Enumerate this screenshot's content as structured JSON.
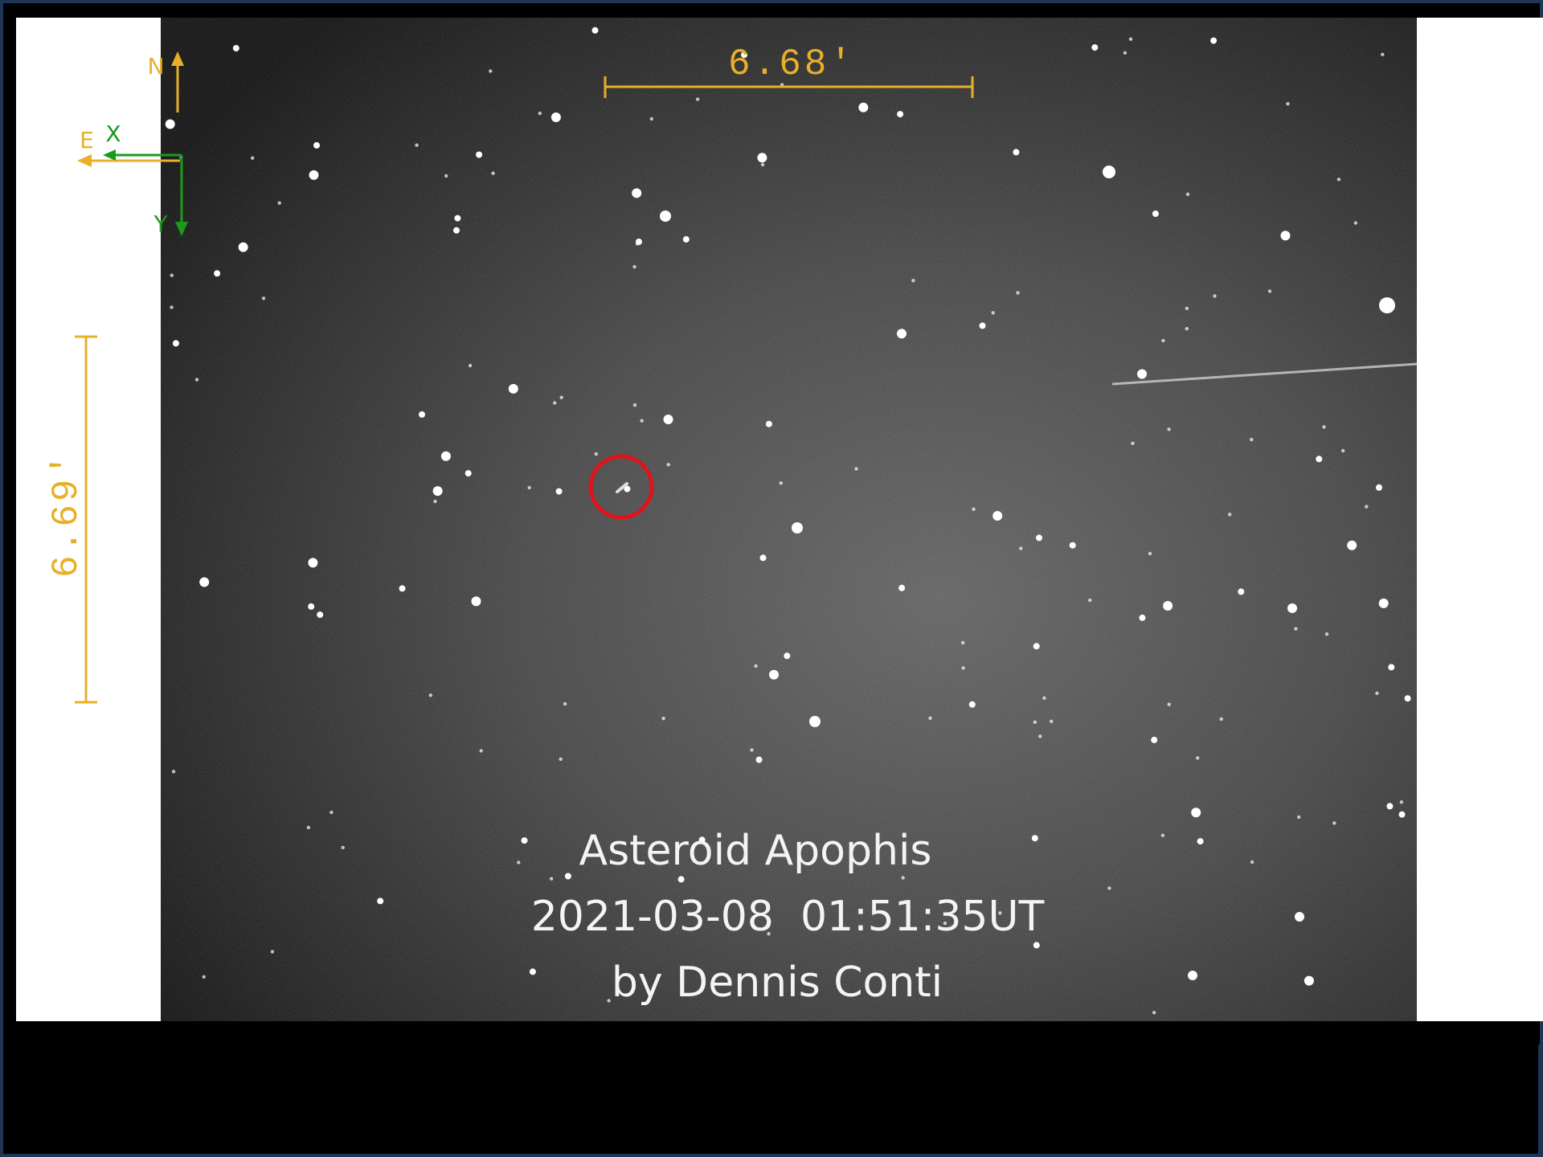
{
  "scale_bar_horizontal": {
    "label": "6.68'"
  },
  "scale_bar_vertical": {
    "label": "6.69'"
  },
  "compass": {
    "north": "N",
    "east": "E",
    "x": "X",
    "y": "Y"
  },
  "caption": {
    "title": "Asteroid Apophis",
    "timestamp": "2021-03-08  01:51:35UT",
    "credit": "by Dennis Conti"
  }
}
